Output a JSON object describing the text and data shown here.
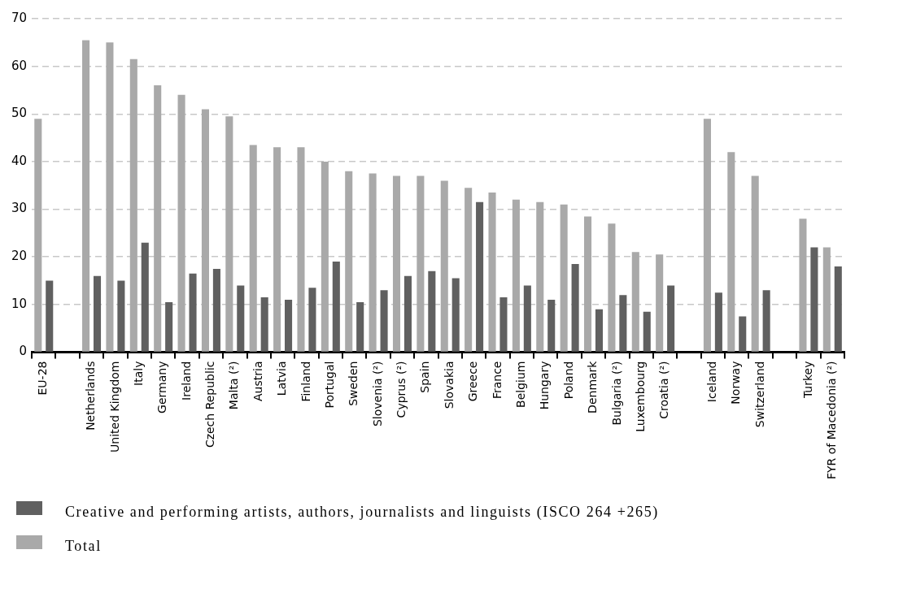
{
  "chart_data": {
    "type": "bar",
    "categories": [
      "EU-28",
      null,
      "Netherlands",
      "United Kingdom",
      "Italy",
      "Germany",
      "Ireland",
      "Czech Republic",
      "Malta (²)",
      "Austria",
      "Latvia",
      "Finland",
      "Portugal",
      "Sweden",
      "Slovenia (²)",
      "Cyprus (²)",
      "Spain",
      "Slovakia",
      "Greece",
      "France",
      "Belgium",
      "Hungary",
      "Poland",
      "Denmark",
      "Bulgaria (²)",
      "Luxembourg",
      "Croatia (²)",
      null,
      "Iceland",
      "Norway",
      "Switzerland",
      null,
      "Turkey",
      "FYR of Macedonia (²)"
    ],
    "series": [
      {
        "name": "Total",
        "color": "#a9a9a9",
        "values": [
          49,
          null,
          65.5,
          65,
          61.5,
          56,
          54,
          51,
          49.5,
          43.5,
          43,
          43,
          40,
          38,
          37.5,
          37,
          37,
          36,
          34.5,
          33.5,
          32,
          31.5,
          31,
          28.5,
          27,
          21,
          20.5,
          null,
          49,
          42,
          37,
          null,
          28,
          22
        ]
      },
      {
        "name": "Creative and performing artists, authors, journalists and linguists (ISCO 264 +265)",
        "color": "#606060",
        "values": [
          15,
          null,
          16,
          15,
          23,
          10.5,
          16.5,
          17.5,
          14,
          11.5,
          11,
          13.5,
          19,
          10.5,
          13,
          16,
          17,
          15.5,
          31.5,
          11.5,
          14,
          11,
          18.5,
          9,
          12,
          8.5,
          14,
          null,
          12.5,
          7.5,
          13,
          null,
          22,
          18
        ]
      }
    ],
    "ylim": [
      0,
      70
    ],
    "yticks": [
      0,
      10,
      20,
      30,
      40,
      50,
      60,
      70
    ],
    "grid": "y",
    "legend": "bottom"
  }
}
